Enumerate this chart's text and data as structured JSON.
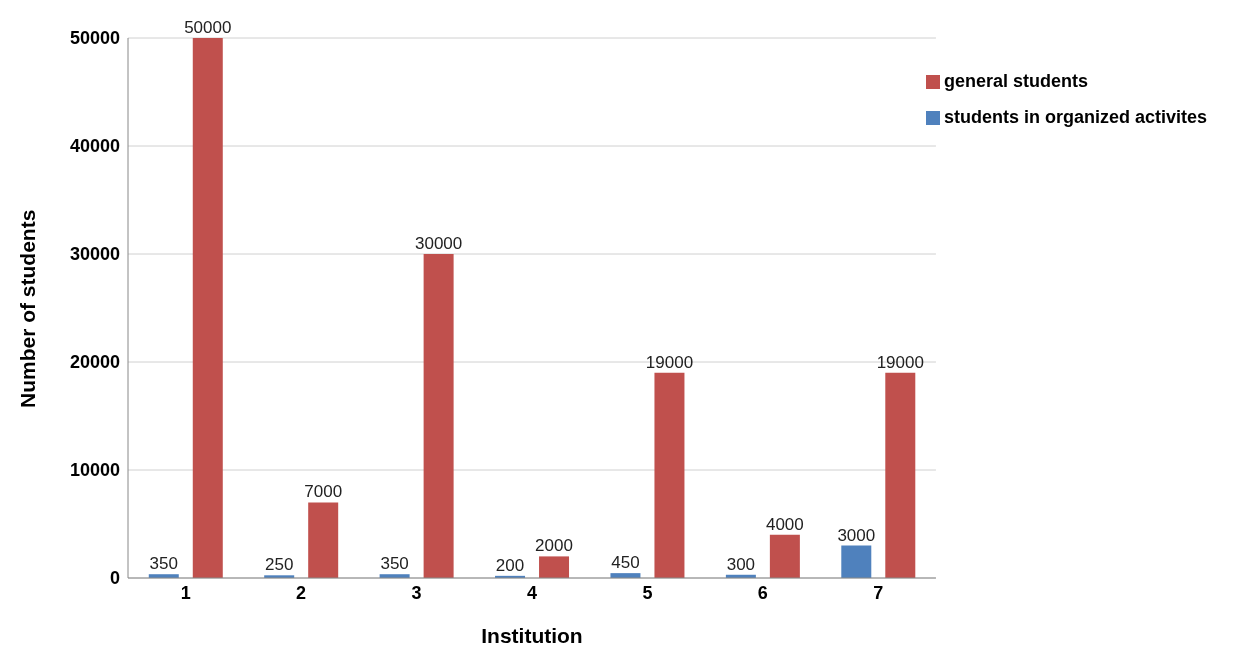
{
  "chart_data": {
    "type": "bar",
    "xlabel": "Institution",
    "ylabel": "Number of students",
    "categories": [
      "1",
      "2",
      "3",
      "4",
      "5",
      "6",
      "7"
    ],
    "series": [
      {
        "name": "students in organized activites",
        "color": "#4f81bd",
        "values": [
          350,
          250,
          350,
          200,
          450,
          300,
          3000
        ]
      },
      {
        "name": "general students",
        "color": "#c0504d",
        "values": [
          50000,
          7000,
          30000,
          2000,
          19000,
          4000,
          19000
        ]
      }
    ],
    "ylim": [
      0,
      50000
    ],
    "yticks": [
      0,
      10000,
      20000,
      30000,
      40000,
      50000
    ],
    "grid": "y",
    "legend": "top right",
    "data_labels": true
  }
}
